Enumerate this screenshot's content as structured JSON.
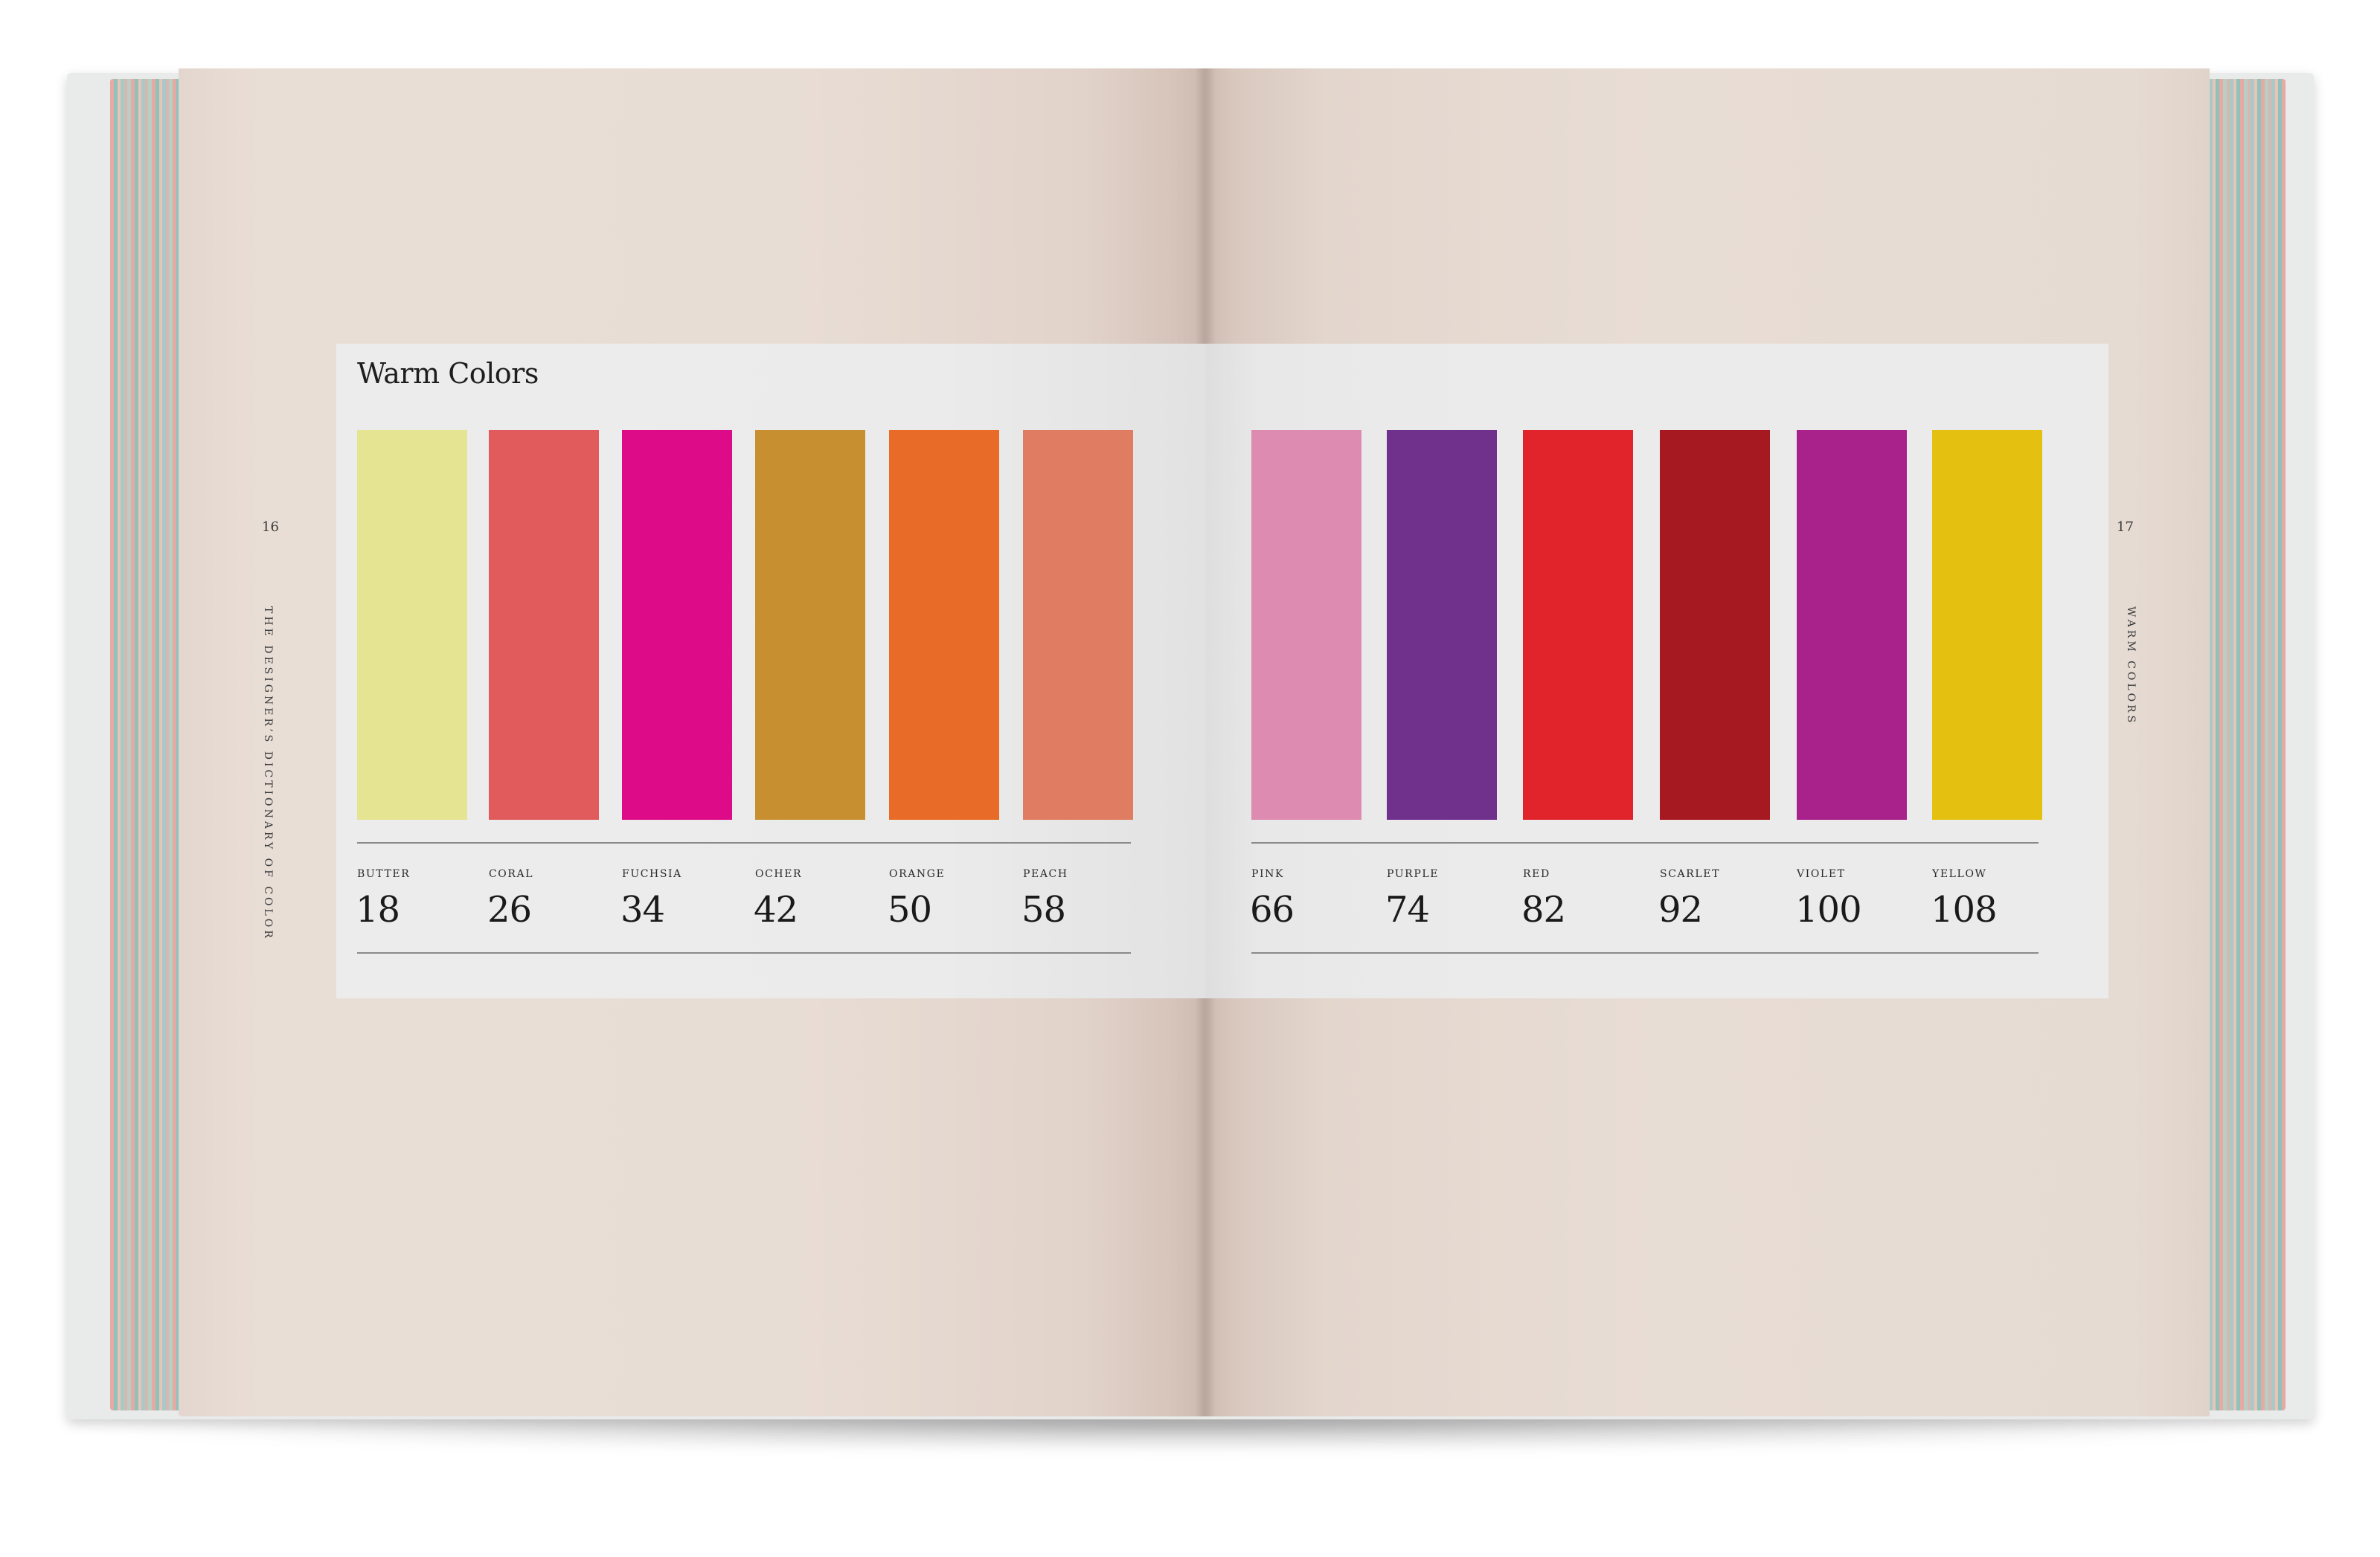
{
  "left_page": {
    "page_number": "16",
    "running_head": "THE DESIGNER’S DICTIONARY OF COLOR"
  },
  "right_page": {
    "page_number": "17",
    "running_head": "WARM COLORS"
  },
  "panel": {
    "title": "Warm Colors",
    "colors": [
      {
        "name": "BUTTER",
        "page": "18",
        "hex": "#e5e493"
      },
      {
        "name": "CORAL",
        "page": "26",
        "hex": "#e15a5c"
      },
      {
        "name": "FUCHSIA",
        "page": "34",
        "hex": "#de0b88"
      },
      {
        "name": "OCHER",
        "page": "42",
        "hex": "#c88f31"
      },
      {
        "name": "ORANGE",
        "page": "50",
        "hex": "#e86c28"
      },
      {
        "name": "PEACH",
        "page": "58",
        "hex": "#e07c62"
      },
      {
        "name": "PINK",
        "page": "66",
        "hex": "#dd8bb1"
      },
      {
        "name": "PURPLE",
        "page": "74",
        "hex": "#70318d"
      },
      {
        "name": "RED",
        "page": "82",
        "hex": "#e1232c"
      },
      {
        "name": "SCARLET",
        "page": "92",
        "hex": "#a71920"
      },
      {
        "name": "VIOLET",
        "page": "100",
        "hex": "#a9218a"
      },
      {
        "name": "YELLOW",
        "page": "108",
        "hex": "#e4c111"
      }
    ]
  }
}
